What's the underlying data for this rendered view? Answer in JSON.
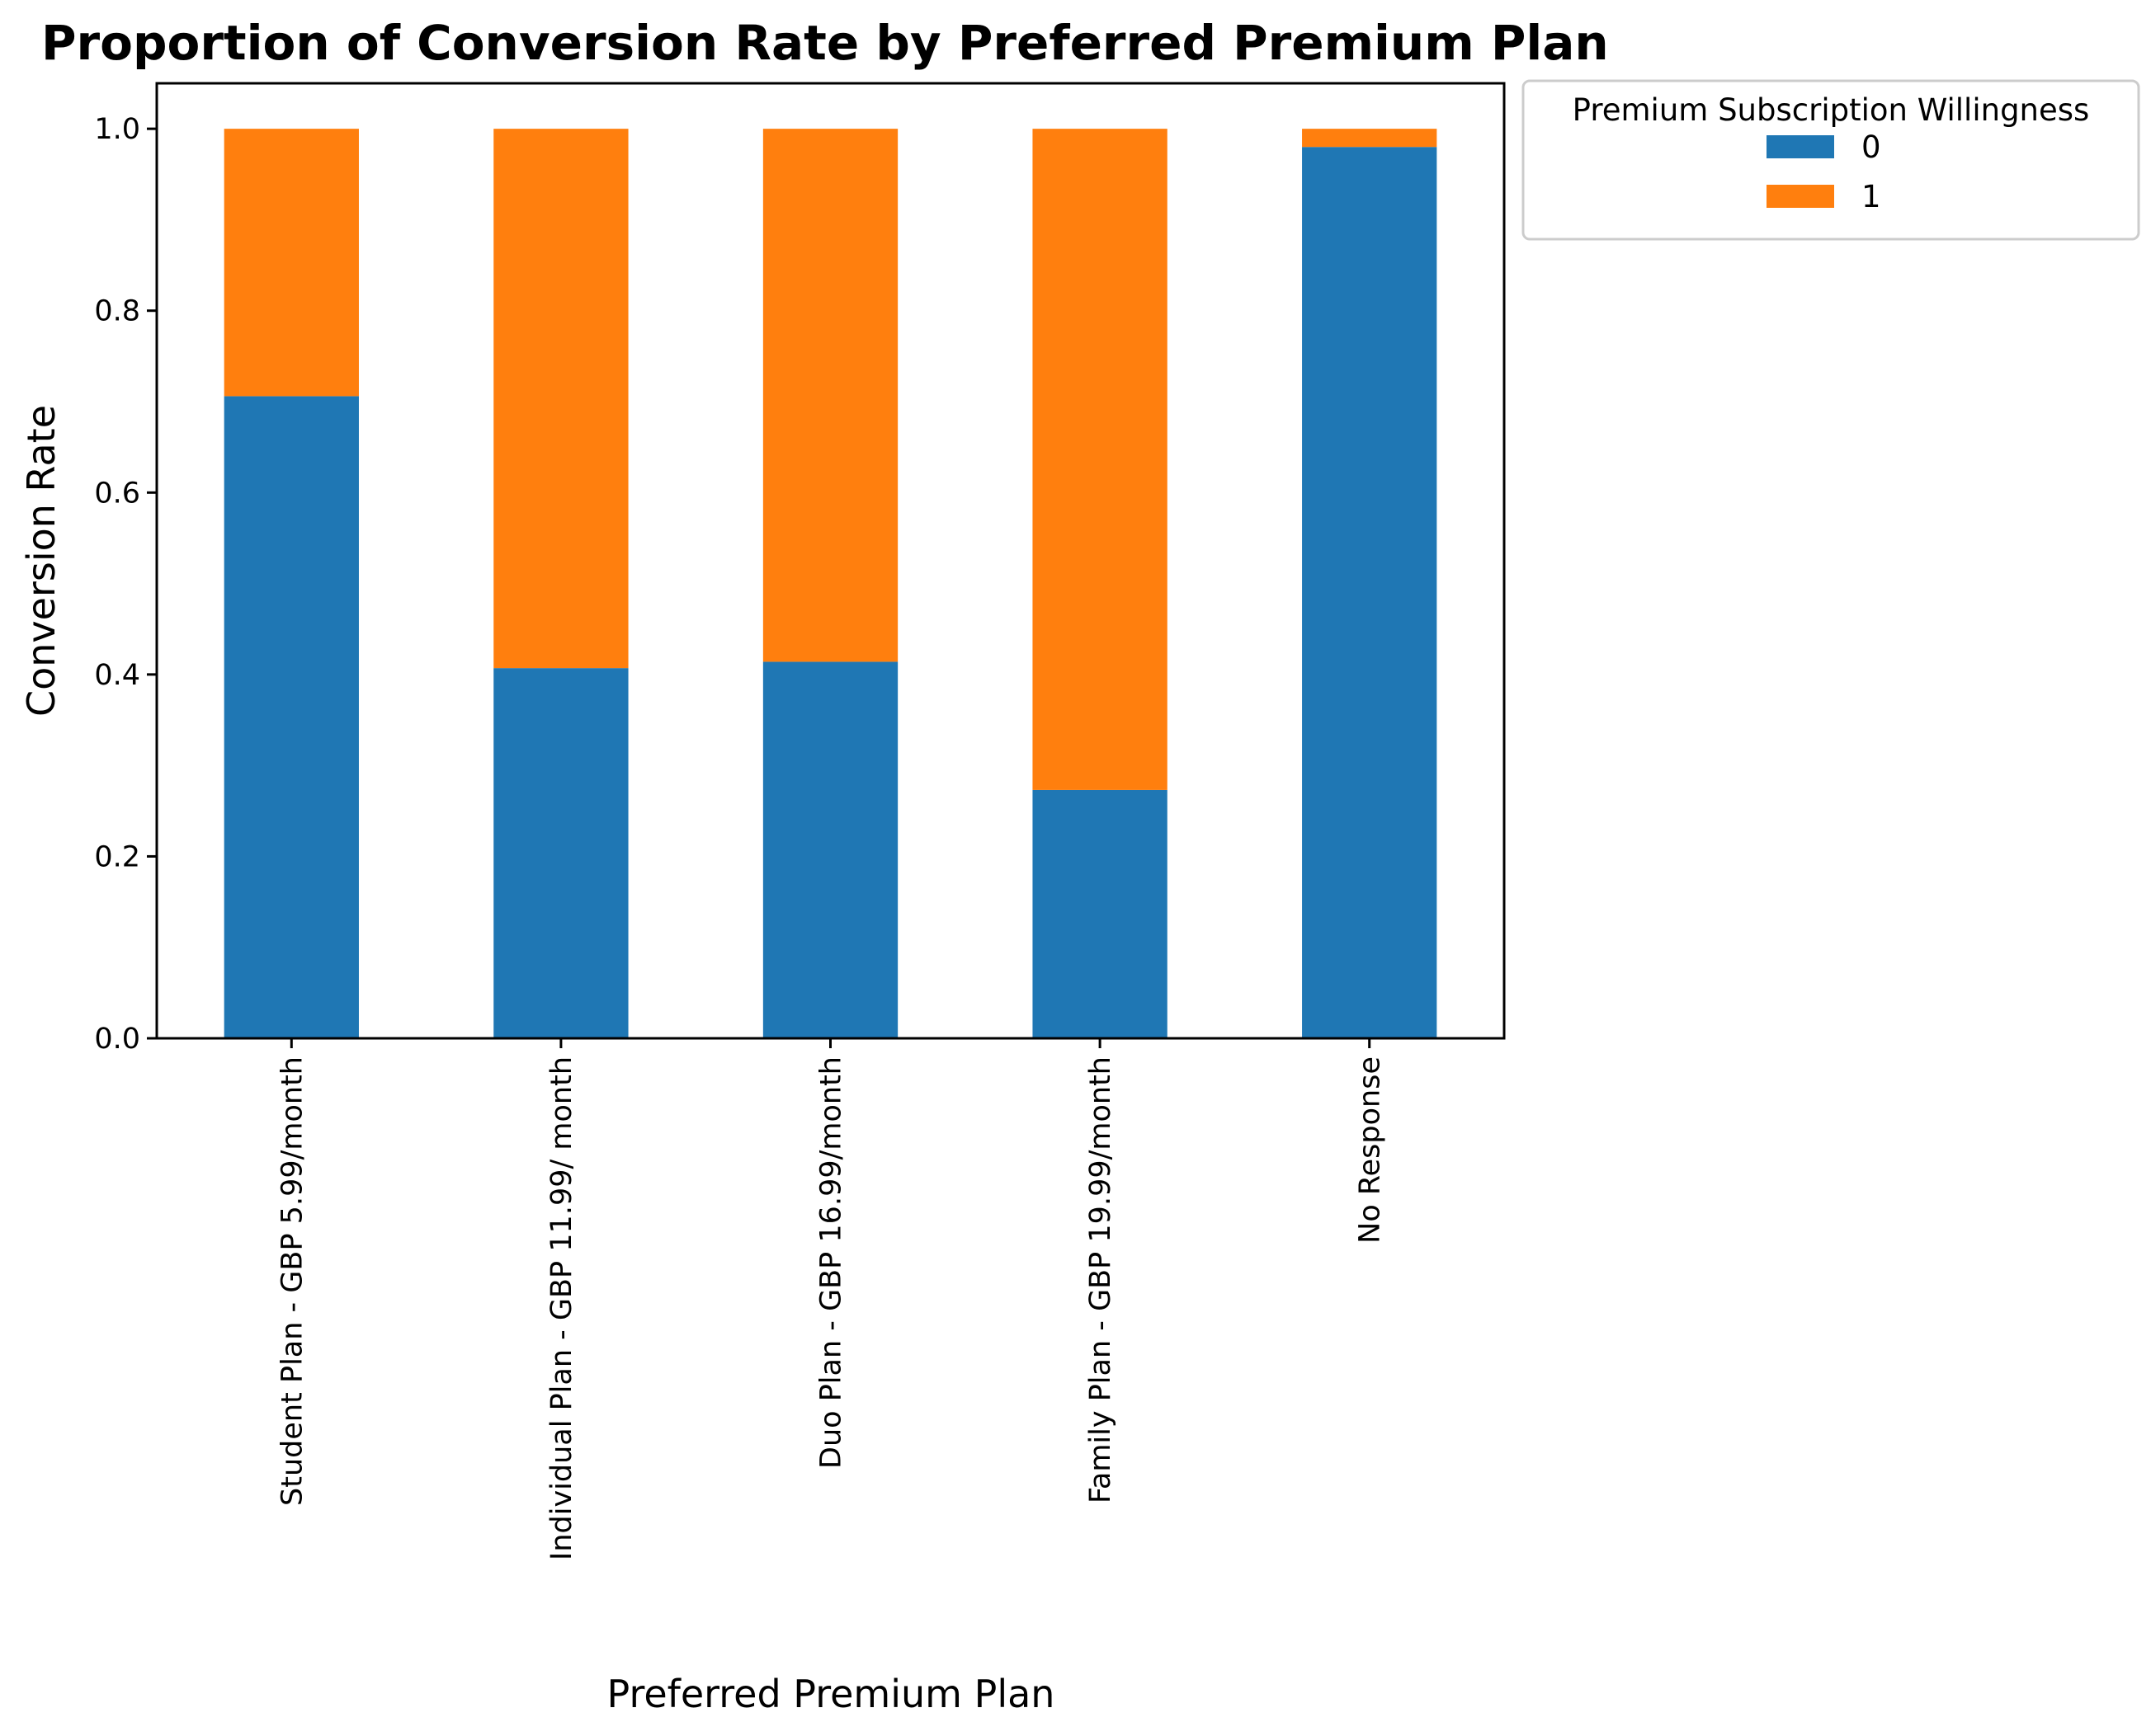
{
  "chart_data": {
    "type": "bar",
    "stacked": true,
    "title": "Proportion of Conversion Rate by Preferred Premium Plan",
    "xlabel": "Preferred Premium Plan",
    "ylabel": "Conversion Rate",
    "ylim": [
      0,
      1.05
    ],
    "yticks": [
      "0.0",
      "0.2",
      "0.4",
      "0.6",
      "0.8",
      "1.0"
    ],
    "categories": [
      "Student Plan - GBP 5.99/month",
      "Individual Plan - GBP 11.99/ month",
      "Duo Plan - GBP 16.99/month",
      "Family Plan - GBP 19.99/month",
      "No Response"
    ],
    "series": [
      {
        "name": "0",
        "color": "#1f77b4",
        "values": [
          0.706,
          0.407,
          0.414,
          0.273,
          0.98
        ]
      },
      {
        "name": "1",
        "color": "#ff7f0e",
        "values": [
          0.294,
          0.593,
          0.586,
          0.727,
          0.02
        ]
      }
    ],
    "legend": {
      "title": "Premium Subscription Willingness",
      "placement": "outside-top-right"
    },
    "grid": false
  }
}
